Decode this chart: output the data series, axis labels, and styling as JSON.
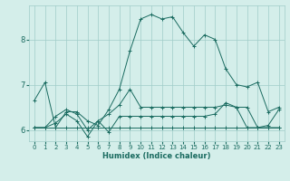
{
  "xlabel": "Humidex (Indice chaleur)",
  "bg_color": "#d4eeea",
  "grid_color": "#a0ccc8",
  "line_color": "#1a6b60",
  "xlim": [
    -0.5,
    23.5
  ],
  "ylim": [
    5.75,
    8.75
  ],
  "yticks": [
    6,
    7,
    8
  ],
  "xticks": [
    0,
    1,
    2,
    3,
    4,
    5,
    6,
    7,
    8,
    9,
    10,
    11,
    12,
    13,
    14,
    15,
    16,
    17,
    18,
    19,
    20,
    21,
    22,
    23
  ],
  "series1": [
    6.65,
    7.05,
    6.05,
    6.4,
    6.4,
    6.2,
    6.1,
    6.45,
    6.9,
    7.75,
    8.45,
    8.55,
    8.45,
    8.5,
    8.15,
    7.85,
    8.1,
    8.0,
    7.35,
    7.0,
    6.95,
    7.05,
    6.4,
    6.5
  ],
  "series2": [
    6.05,
    6.05,
    6.3,
    6.45,
    6.35,
    6.0,
    6.2,
    6.35,
    6.55,
    6.9,
    6.5,
    6.5,
    6.5,
    6.5,
    6.5,
    6.5,
    6.5,
    6.5,
    6.55,
    6.5,
    6.5,
    6.05,
    6.05,
    6.05
  ],
  "series3": [
    6.05,
    6.05,
    6.15,
    6.35,
    6.2,
    5.85,
    6.2,
    5.95,
    6.3,
    6.3,
    6.3,
    6.3,
    6.3,
    6.3,
    6.3,
    6.3,
    6.3,
    6.35,
    6.6,
    6.5,
    6.05,
    6.05,
    6.1,
    6.45
  ],
  "series4": [
    6.05,
    6.05,
    6.05,
    6.05,
    6.05,
    6.05,
    6.05,
    6.05,
    6.05,
    6.05,
    6.05,
    6.05,
    6.05,
    6.05,
    6.05,
    6.05,
    6.05,
    6.05,
    6.05,
    6.05,
    6.05,
    6.05,
    6.05,
    6.05
  ]
}
